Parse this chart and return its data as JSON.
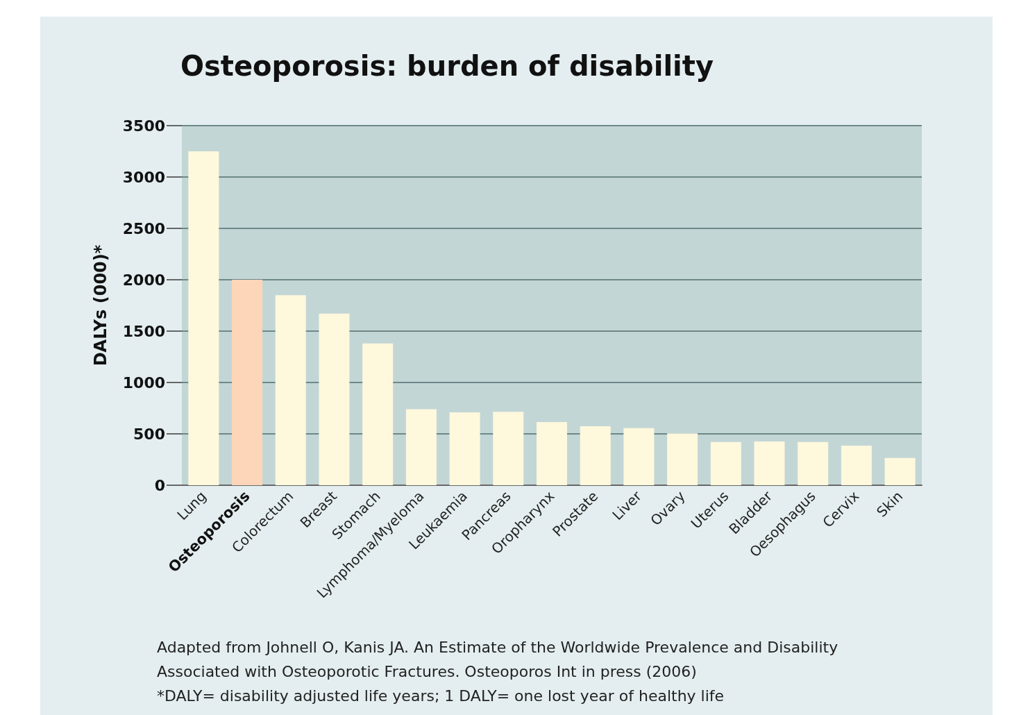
{
  "chart_data": {
    "type": "bar",
    "title": "Osteoporosis: burden of disability",
    "ylabel": "DALYs (000)*",
    "categories": [
      "Lung",
      "Osteoporosis",
      "Colorectum",
      "Breast",
      "Stomach",
      "Lymphoma/Myeloma",
      "Leukaemia",
      "Pancreas",
      "Oropharynx",
      "Prostate",
      "Liver",
      "Ovary",
      "Uterus",
      "Bladder",
      "Oesophagus",
      "Cervix",
      "Skin"
    ],
    "values": [
      3250,
      2000,
      1850,
      1670,
      1380,
      740,
      710,
      715,
      615,
      575,
      555,
      505,
      420,
      425,
      420,
      385,
      265
    ],
    "colors": [
      "#fef8dd",
      "#fdd5b9",
      "#fef8dd",
      "#fef8dd",
      "#fef8dd",
      "#fef8dd",
      "#fef8dd",
      "#fef8dd",
      "#fef8dd",
      "#fef8dd",
      "#fef8dd",
      "#fef8dd",
      "#fef8dd",
      "#fef8dd",
      "#fef8dd",
      "#fef8dd",
      "#fef8dd"
    ],
    "ylim": [
      0,
      3500
    ],
    "yticks": [
      0,
      500,
      1000,
      1500,
      2000,
      2500,
      3000,
      3500
    ],
    "grid": "y",
    "annotations": [
      "Adapted from Johnell O, Kanis JA. An Estimate of the Worldwide Prevalence and Disability Associated with Osteoporotic Fractures. Osteoporos Int in press (2006)",
      "*DALY= disability adjusted life years; 1 DALY= one lost year of healthy life"
    ]
  }
}
